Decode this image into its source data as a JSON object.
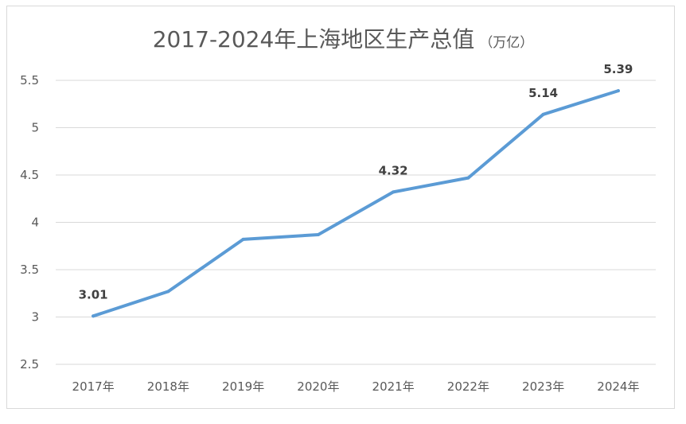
{
  "chart_data": {
    "type": "line",
    "title": "2017-2024年上海地区生产总值",
    "subtitle": "（万亿）",
    "xlabel": "",
    "ylabel": "",
    "categories": [
      "2017年",
      "2018年",
      "2019年",
      "2020年",
      "2021年",
      "2022年",
      "2023年",
      "2024年"
    ],
    "series": [
      {
        "values": [
          3.01,
          3.27,
          3.82,
          3.87,
          4.32,
          4.47,
          5.14,
          5.39
        ],
        "color": "#5b9bd5"
      }
    ],
    "data_labels": [
      {
        "category": "2017年",
        "text": "3.01"
      },
      {
        "category": "2021年",
        "text": "4.32"
      },
      {
        "category": "2023年",
        "text": "5.14"
      },
      {
        "category": "2024年",
        "text": "5.39"
      }
    ],
    "ylim": [
      2.5,
      5.5
    ],
    "yticks": [
      2.5,
      3,
      3.5,
      4,
      4.5,
      5,
      5.5
    ],
    "ytick_labels": [
      "2.5",
      "3",
      "3.5",
      "4",
      "4.5",
      "5",
      "5.5"
    ],
    "grid": true,
    "legend": "none",
    "colors": {
      "line": "#5b9bd5",
      "grid": "#d9d9d9",
      "text": "#595959",
      "data_label": "#404040"
    }
  }
}
